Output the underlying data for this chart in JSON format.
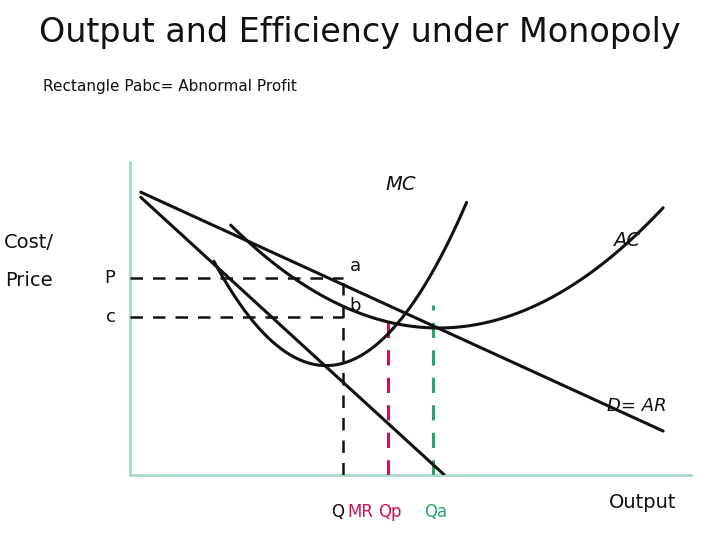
{
  "title": "Output and Efficiency under Monopoly",
  "subtitle": "Rectangle Pabc= Abnormal Profit",
  "ylabel_line1": "Cost/",
  "ylabel_line2": "Price",
  "xlabel": "Output",
  "label_MC": "MC",
  "label_AC": "AC",
  "label_D": "D= AR",
  "label_P": "P",
  "label_c": "c",
  "label_a": "a",
  "label_b": "b",
  "label_Q": "Q",
  "label_MR_text": "MR",
  "label_Qp": "Qp",
  "label_Qa": "Qa",
  "bg_color": "#ffffff",
  "line_color": "#111111",
  "dashed_black": "#111111",
  "dashed_pink": "#cc1155",
  "dashed_green": "#22aa66",
  "spine_color": "#a8d8d0",
  "title_fontsize": 24,
  "subtitle_fontsize": 11,
  "label_fontsize": 13,
  "curve_label_fontsize": 14,
  "tick_label_fontsize": 12,
  "x_min": 0,
  "x_max": 10,
  "y_min": 0,
  "y_max": 10,
  "x_QMR": 3.8,
  "x_Qp": 4.6,
  "x_Qa": 5.4,
  "y_P": 6.3,
  "y_c": 5.05
}
